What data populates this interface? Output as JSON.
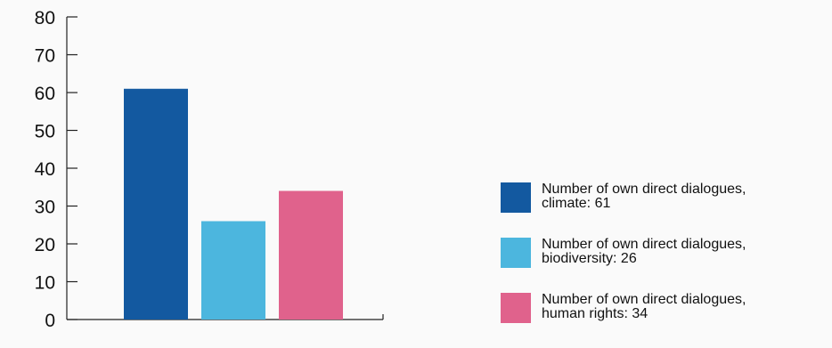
{
  "chart_data": {
    "type": "bar",
    "categories": [
      "Number of own direct dialogues, climate",
      "Number of own direct dialogues, biodiversity",
      "Number of own direct dialogues, human rights"
    ],
    "values": [
      61,
      26,
      34
    ],
    "colors": [
      "#1359a0",
      "#4cb6de",
      "#e0628c"
    ],
    "ylim": [
      0,
      80
    ],
    "yticks": [
      0,
      10,
      20,
      30,
      40,
      50,
      60,
      70,
      80
    ],
    "grid": false,
    "legend_position": "right",
    "legend": [
      {
        "line1": "Number of own direct dialogues,",
        "line2": "climate: 61"
      },
      {
        "line1": "Number of own direct dialogues,",
        "line2": "biodiversity: 26"
      },
      {
        "line1": "Number of own direct dialogues,",
        "line2": "human rights: 34"
      }
    ]
  }
}
